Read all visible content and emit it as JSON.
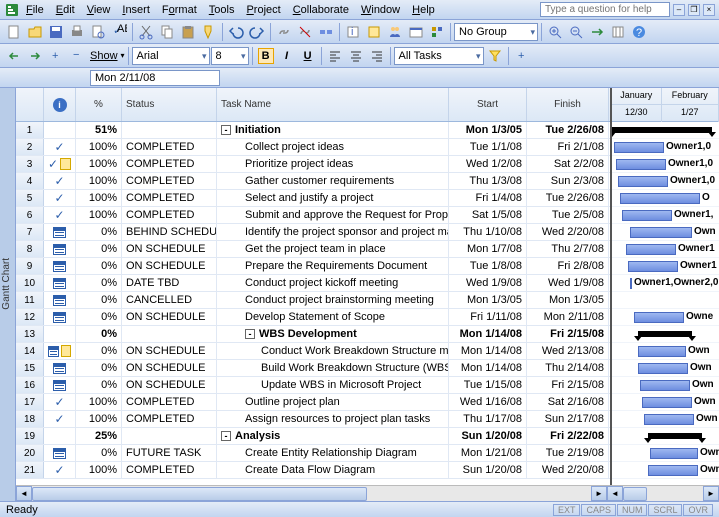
{
  "menu": {
    "file": "File",
    "edit": "Edit",
    "view": "View",
    "insert": "Insert",
    "format": "Format",
    "tools": "Tools",
    "project": "Project",
    "collaborate": "Collaborate",
    "window": "Window",
    "help": "Help"
  },
  "help_placeholder": "Type a question for help",
  "toolbar2": {
    "show": "Show",
    "font": "Arial",
    "size": "8",
    "filter": "All Tasks",
    "group": "No Group"
  },
  "date_input": "Mon 2/11/08",
  "columns": {
    "pct": "%",
    "status": "Status",
    "task": "Task Name",
    "start": "Start",
    "finish": "Finish"
  },
  "months": {
    "jan": "January",
    "feb": "February",
    "d1": "12/30",
    "d2": "1/27"
  },
  "side_tab": "Gantt Chart",
  "status_text": "Ready",
  "indicators": [
    "EXT",
    "CAPS",
    "NUM",
    "SCRL",
    "OVR"
  ],
  "rows": [
    {
      "n": 1,
      "ind": "",
      "pct": "51%",
      "status": "",
      "task": "Initiation",
      "start": "Mon 1/3/05",
      "finish": "Tue 2/26/08",
      "bold": true,
      "out": "-",
      "lvl": 0,
      "sum": true,
      "o": ""
    },
    {
      "n": 2,
      "ind": "check",
      "pct": "100%",
      "status": "COMPLETED",
      "task": "Collect project ideas",
      "start": "Tue 1/1/08",
      "finish": "Fri 2/1/08",
      "lvl": 1,
      "bl": 2,
      "bw": 50,
      "o": "Owner1,0"
    },
    {
      "n": 3,
      "ind": "checknote",
      "pct": "100%",
      "status": "COMPLETED",
      "task": "Prioritize project ideas",
      "start": "Wed 1/2/08",
      "finish": "Sat 2/2/08",
      "lvl": 1,
      "bl": 4,
      "bw": 50,
      "o": "Owner1,0"
    },
    {
      "n": 4,
      "ind": "check",
      "pct": "100%",
      "status": "COMPLETED",
      "task": "Gather customer requirements",
      "start": "Thu 1/3/08",
      "finish": "Sun 2/3/08",
      "lvl": 1,
      "bl": 6,
      "bw": 50,
      "o": "Owner1,0"
    },
    {
      "n": 5,
      "ind": "check",
      "pct": "100%",
      "status": "COMPLETED",
      "task": "Select and justify a project",
      "start": "Fri 1/4/08",
      "finish": "Tue 2/26/08",
      "lvl": 1,
      "bl": 8,
      "bw": 80,
      "o": "O"
    },
    {
      "n": 6,
      "ind": "check",
      "pct": "100%",
      "status": "COMPLETED",
      "task": "Submit and approve the Request for Proposal",
      "start": "Sat 1/5/08",
      "finish": "Tue 2/5/08",
      "lvl": 1,
      "bl": 10,
      "bw": 50,
      "o": "Owner1,"
    },
    {
      "n": 7,
      "ind": "cal",
      "pct": "0%",
      "status": "BEHIND SCHEDULE",
      "task": "Identify the project sponsor and project manag",
      "start": "Thu 1/10/08",
      "finish": "Wed 2/20/08",
      "lvl": 1,
      "bl": 18,
      "bw": 62,
      "o": "Own"
    },
    {
      "n": 8,
      "ind": "cal",
      "pct": "0%",
      "status": "ON SCHEDULE",
      "task": "Get the project team in place",
      "start": "Mon 1/7/08",
      "finish": "Thu 2/7/08",
      "lvl": 1,
      "bl": 14,
      "bw": 50,
      "o": "Owner1"
    },
    {
      "n": 9,
      "ind": "cal",
      "pct": "0%",
      "status": "ON SCHEDULE",
      "task": "Prepare the Requirements Document",
      "start": "Tue 1/8/08",
      "finish": "Fri 2/8/08",
      "lvl": 1,
      "bl": 16,
      "bw": 50,
      "o": "Owner1"
    },
    {
      "n": 10,
      "ind": "cal",
      "pct": "0%",
      "status": "DATE TBD",
      "task": "Conduct project kickoff meeting",
      "start": "Wed 1/9/08",
      "finish": "Wed 1/9/08",
      "lvl": 1,
      "bl": 18,
      "bw": 2,
      "o": "Owner1,Owner2,0"
    },
    {
      "n": 11,
      "ind": "cal",
      "pct": "0%",
      "status": "CANCELLED",
      "task": "Conduct project brainstorming meeting",
      "start": "Mon 1/3/05",
      "finish": "Mon 1/3/05",
      "lvl": 1,
      "o": ""
    },
    {
      "n": 12,
      "ind": "cal",
      "pct": "0%",
      "status": "ON SCHEDULE",
      "task": "Develop Statement of Scope",
      "start": "Fri 1/11/08",
      "finish": "Mon 2/11/08",
      "lvl": 1,
      "bl": 22,
      "bw": 50,
      "o": "Owne"
    },
    {
      "n": 13,
      "ind": "",
      "pct": "0%",
      "status": "",
      "task": "WBS Development",
      "start": "Mon 1/14/08",
      "finish": "Fri 2/15/08",
      "bold": true,
      "out": "-",
      "lvl": 1,
      "sum": true,
      "bl": 26,
      "bw": 54,
      "o": ""
    },
    {
      "n": 14,
      "ind": "calnote",
      "pct": "0%",
      "status": "ON SCHEDULE",
      "task": "Conduct Work Breakdown Structure meetin",
      "start": "Mon 1/14/08",
      "finish": "Wed 2/13/08",
      "lvl": 2,
      "bl": 26,
      "bw": 48,
      "o": "Own"
    },
    {
      "n": 15,
      "ind": "cal",
      "pct": "0%",
      "status": "ON SCHEDULE",
      "task": "Build Work Breakdown Structure (WBS)",
      "start": "Mon 1/14/08",
      "finish": "Thu 2/14/08",
      "lvl": 2,
      "bl": 26,
      "bw": 50,
      "o": "Own"
    },
    {
      "n": 16,
      "ind": "cal",
      "pct": "0%",
      "status": "ON SCHEDULE",
      "task": "Update WBS in Microsoft Project",
      "start": "Tue 1/15/08",
      "finish": "Fri 2/15/08",
      "lvl": 2,
      "bl": 28,
      "bw": 50,
      "o": "Own"
    },
    {
      "n": 17,
      "ind": "check",
      "pct": "100%",
      "status": "COMPLETED",
      "task": "Outline project plan",
      "start": "Wed 1/16/08",
      "finish": "Sat 2/16/08",
      "lvl": 1,
      "bl": 30,
      "bw": 50,
      "o": "Own"
    },
    {
      "n": 18,
      "ind": "check",
      "pct": "100%",
      "status": "COMPLETED",
      "task": "Assign resources to project plan tasks",
      "start": "Thu 1/17/08",
      "finish": "Sun 2/17/08",
      "lvl": 1,
      "bl": 32,
      "bw": 50,
      "o": "Own"
    },
    {
      "n": 19,
      "ind": "",
      "pct": "25%",
      "status": "",
      "task": "Analysis",
      "start": "Sun 1/20/08",
      "finish": "Fri 2/22/08",
      "bold": true,
      "out": "-",
      "lvl": 0,
      "sum": true,
      "bl": 36,
      "bw": 54,
      "o": ""
    },
    {
      "n": 20,
      "ind": "cal",
      "pct": "0%",
      "status": "FUTURE TASK",
      "task": "Create Entity Relationship Diagram",
      "start": "Mon 1/21/08",
      "finish": "Tue 2/19/08",
      "lvl": 1,
      "bl": 38,
      "bw": 48,
      "o": "Own"
    },
    {
      "n": 21,
      "ind": "check",
      "pct": "100%",
      "status": "COMPLETED",
      "task": "Create Data Flow Diagram",
      "start": "Sun 1/20/08",
      "finish": "Wed 2/20/08",
      "lvl": 1,
      "bl": 36,
      "bw": 50,
      "o": "Own"
    }
  ]
}
